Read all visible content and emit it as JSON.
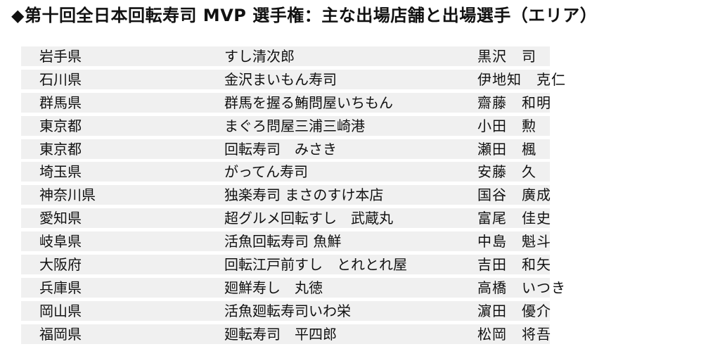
{
  "title": "◆第十回全日本回転寿司 MVP 選手権：主な出場店舗と出場選手（エリア）",
  "rows": [
    {
      "pref": "岩手県",
      "shop": "すし清次郎",
      "name": "黒沢　司"
    },
    {
      "pref": "石川県",
      "shop": "金沢まいもん寿司",
      "name": "伊地知　克仁"
    },
    {
      "pref": "群馬県",
      "shop": "群馬を握る鮪問屋いちもん",
      "name": "齋藤　和明"
    },
    {
      "pref": "東京都",
      "shop": "まぐろ問屋三浦三崎港",
      "name": "小田　勲"
    },
    {
      "pref": "東京都",
      "shop": "回転寿司　みさき",
      "name": "瀬田　楓"
    },
    {
      "pref": "埼玉県",
      "shop": "がってん寿司",
      "name": "安藤　久"
    },
    {
      "pref": "神奈川県",
      "shop": "独楽寿司 まさのすけ本店",
      "name": "国谷　廣成"
    },
    {
      "pref": "愛知県",
      "shop": "超グルメ回転すし　武蔵丸",
      "name": "富尾　佳史"
    },
    {
      "pref": "岐阜県",
      "shop": "活魚回転寿司 魚鮮",
      "name": "中島　魁斗"
    },
    {
      "pref": "大阪府",
      "shop": "回転江戸前すし　とれとれ屋",
      "name": "吉田　和矢"
    },
    {
      "pref": "兵庫県",
      "shop": "廻鮮寿し　丸徳",
      "name": "高橋　いつき"
    },
    {
      "pref": "岡山県",
      "shop": "活魚廻転寿司いわ栄",
      "name": "濵田　優介"
    },
    {
      "pref": "福岡県",
      "shop": "廻転寿司　平四郎",
      "name": "松岡　将吾"
    }
  ]
}
